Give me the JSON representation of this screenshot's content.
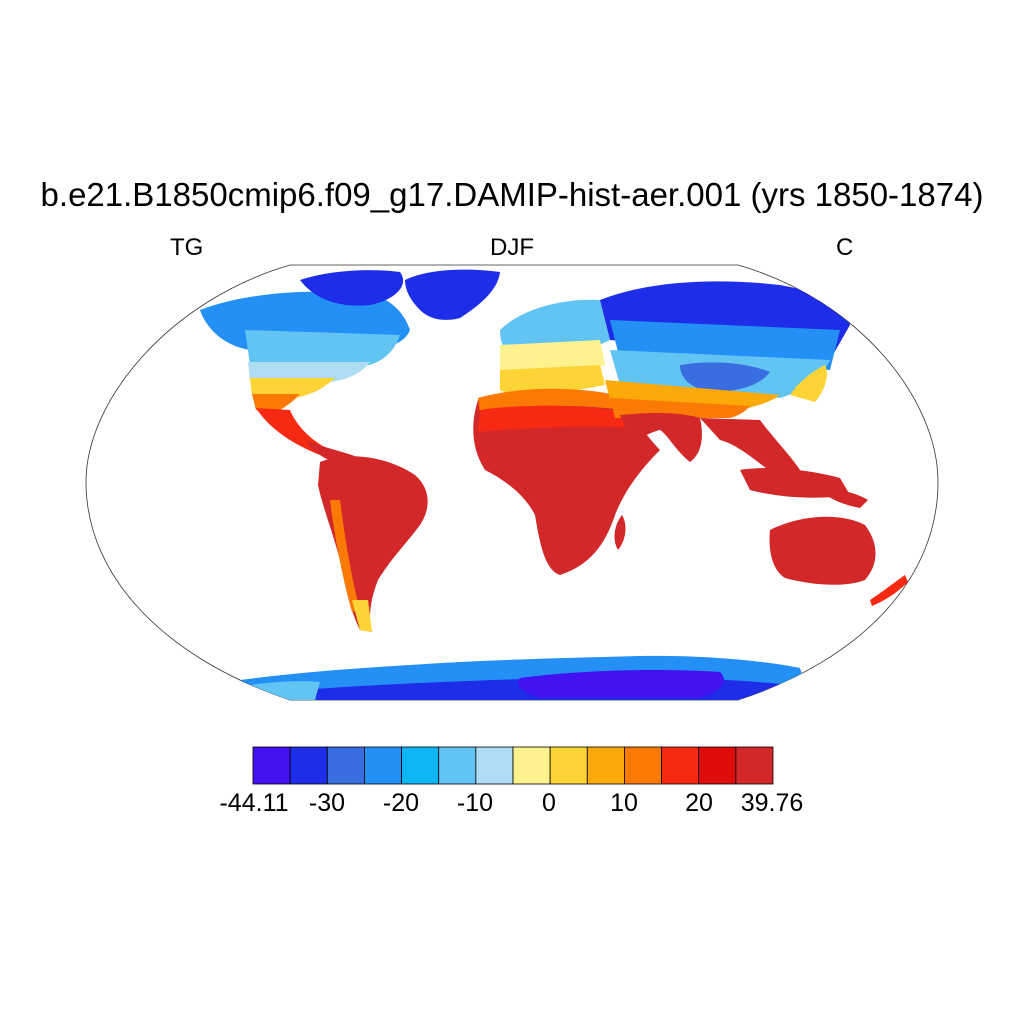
{
  "title": "b.e21.B1850cmip6.f09_g17.DAMIP-hist-aer.001 (yrs 1850-1874)",
  "subtitles": {
    "left": "TG",
    "center": "DJF",
    "right": "C"
  },
  "colorbar": {
    "colors": [
      "#4312f0",
      "#1e2ee8",
      "#3a6ee0",
      "#2490f6",
      "#0fb6f5",
      "#62c4f2",
      "#aedcf3",
      "#fef28f",
      "#fdd435",
      "#fbaa0a",
      "#fb7a06",
      "#f62912",
      "#e00b0b",
      "#d2282a"
    ],
    "labels": [
      "-44.11",
      "-30",
      "-20",
      "-10",
      "0",
      "10",
      "20",
      "39.76"
    ]
  }
}
